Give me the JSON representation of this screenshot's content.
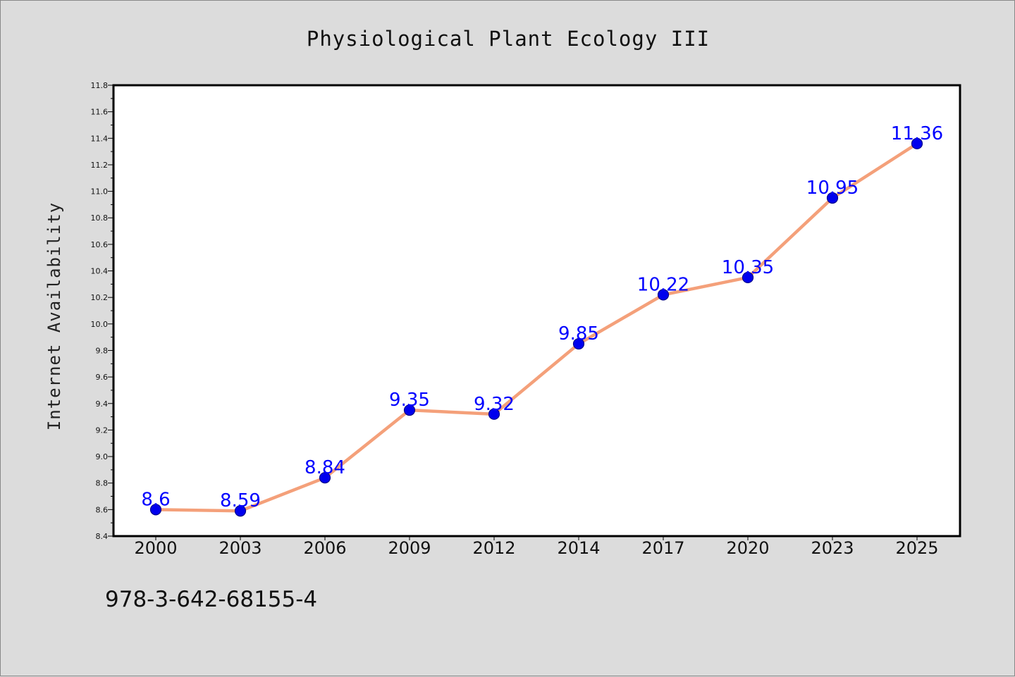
{
  "chart_data": {
    "type": "line",
    "title": "Physiological Plant Ecology III",
    "xlabel": "",
    "ylabel": "Internet Availability",
    "categories": [
      "2000",
      "2003",
      "2006",
      "2009",
      "2012",
      "2014",
      "2017",
      "2020",
      "2023",
      "2025"
    ],
    "series": [
      {
        "values": [
          8.6,
          8.59,
          8.84,
          9.35,
          9.32,
          9.85,
          10.22,
          10.35,
          10.95,
          11.36
        ]
      }
    ],
    "data_labels": [
      "8.6",
      "8.59",
      "8.84",
      "9.35",
      "9.32",
      "9.85",
      "10.22",
      "10.35",
      "10.95",
      "11.36"
    ],
    "ylim": [
      8.4,
      11.8
    ],
    "yticks": [
      "8.4",
      "8.6",
      "8.8",
      "9.0",
      "9.2",
      "9.4",
      "9.6",
      "9.8",
      "10.0",
      "10.2",
      "10.4",
      "10.6",
      "10.8",
      "11.0",
      "11.2",
      "11.4",
      "11.6",
      "11.8"
    ],
    "grid": false,
    "legend": "none",
    "colors": {
      "line": "#f4a07a",
      "marker_fill": "#0000ee",
      "marker_edge": "#00008b",
      "data_label": "#0000ff",
      "plot_background": "#ffffff",
      "figure_background": "#dcdcdc"
    }
  },
  "footer": {
    "isbn": "978-3-642-68155-4"
  }
}
